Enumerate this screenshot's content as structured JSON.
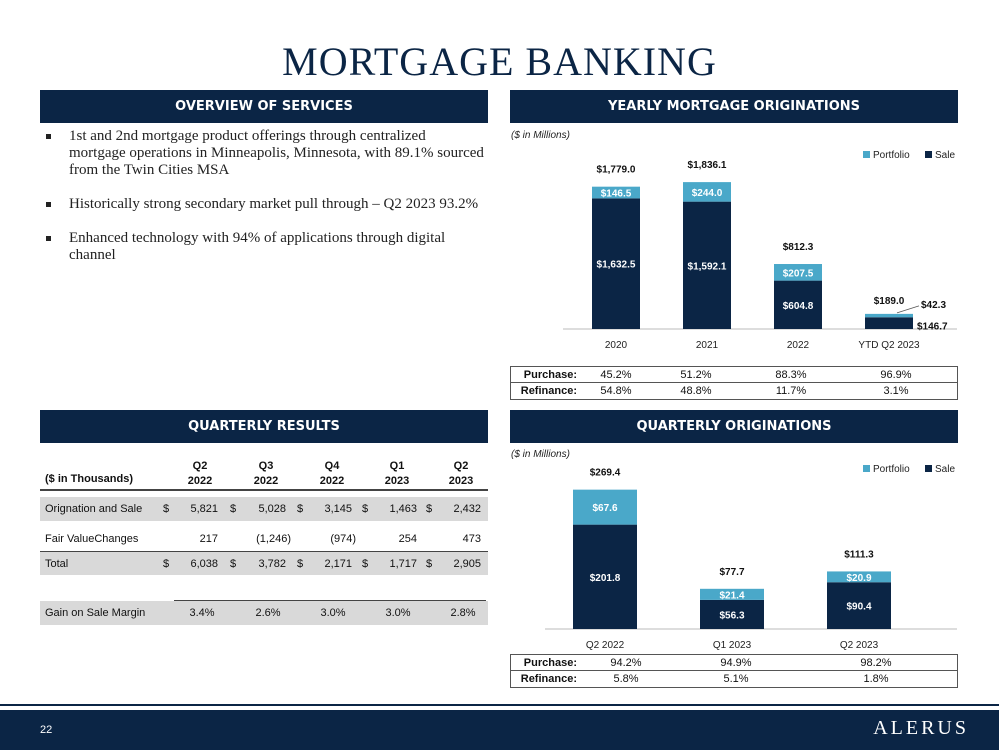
{
  "page": {
    "title": "MORTGAGE BANKING",
    "page_number": "22",
    "logo_text": "ALERUS"
  },
  "overview": {
    "header": "OVERVIEW OF SERVICES",
    "bullets": [
      "1st and 2nd mortgage product offerings through centralized mortgage operations in Minneapolis, Minnesota, with 89.1% sourced from the Twin Cities MSA",
      "Historically strong secondary market pull through – Q2 2023 93.2%",
      "Enhanced technology with 94% of applications through digital channel"
    ]
  },
  "yearly": {
    "header": "YEARLY MORTGAGE ORIGINATIONS",
    "purchase_label": "Purchase:",
    "refinance_label": "Refinance:",
    "purchase": [
      "45.2%",
      "51.2%",
      "88.3%",
      "96.9%"
    ],
    "refinance": [
      "54.8%",
      "48.8%",
      "11.7%",
      "3.1%"
    ]
  },
  "quarterly_orig": {
    "header": "QUARTERLY ORIGINATIONS",
    "purchase_label": "Purchase:",
    "refinance_label": "Refinance:",
    "purchase": [
      "94.2%",
      "94.9%",
      "98.2%"
    ],
    "refinance": [
      "5.8%",
      "5.1%",
      "1.8%"
    ]
  },
  "quarterly_results": {
    "header": "QUARTERLY RESULTS",
    "corner_label": "($ in Thousands)",
    "columns": [
      {
        "line1": "Q2",
        "line2": "2022"
      },
      {
        "line1": "Q3",
        "line2": "2022"
      },
      {
        "line1": "Q4",
        "line2": "2022"
      },
      {
        "line1": "Q1",
        "line2": "2023"
      },
      {
        "line1": "Q2",
        "line2": "2023"
      }
    ],
    "currency": "$",
    "rows": {
      "origination": {
        "label": "Orignation and Sale",
        "values": [
          "5,821",
          "5,028",
          "3,145",
          "1,463",
          "2,432"
        ]
      },
      "fair_value": {
        "label": "Fair ValueChanges",
        "values": [
          "217",
          "(1,246)",
          "(974)",
          "254",
          "473"
        ]
      },
      "total": {
        "label": "Total",
        "values": [
          "6,038",
          "3,782",
          "2,171",
          "1,717",
          "2,905"
        ]
      },
      "gain": {
        "label": "Gain on Sale Margin",
        "values": [
          "3.4%",
          "2.6%",
          "3.0%",
          "3.0%",
          "2.8%"
        ]
      }
    }
  },
  "colors": {
    "navy": "#0b2545",
    "portfolio": "#4aa8c9",
    "sale": "#0b2545",
    "shade": "#d9d9d9"
  },
  "chart_data": [
    {
      "type": "bar",
      "stacked": true,
      "unit_note": "($ in Millions)",
      "categories": [
        "2020",
        "2021",
        "2022",
        "YTD Q2 2023"
      ],
      "series": [
        {
          "name": "Sale",
          "values": [
            1632.5,
            1592.1,
            604.8,
            146.7
          ],
          "labels": [
            "$1,632.5",
            "$1,592.1",
            "$604.8",
            "$146.7"
          ]
        },
        {
          "name": "Portfolio",
          "values": [
            146.5,
            244.0,
            207.5,
            42.3
          ],
          "labels": [
            "$146.5",
            "$244.0",
            "$207.5",
            "$42.3"
          ]
        }
      ],
      "totals": [
        "$1,779.0",
        "$1,836.1",
        "$812.3",
        "$189.0"
      ],
      "legend_labels": [
        "Portfolio",
        "Sale"
      ],
      "legend": "top-right",
      "ylim": [
        0,
        1900
      ]
    },
    {
      "type": "bar",
      "stacked": true,
      "unit_note": "($ in Millions)",
      "categories": [
        "Q2 2022",
        "Q1 2023",
        "Q2 2023"
      ],
      "series": [
        {
          "name": "Sale",
          "values": [
            201.8,
            56.3,
            90.4
          ],
          "labels": [
            "$201.8",
            "$56.3",
            "$90.4"
          ]
        },
        {
          "name": "Portfolio",
          "values": [
            67.6,
            21.4,
            20.9
          ],
          "labels": [
            "$67.6",
            "$21.4",
            "$20.9"
          ]
        }
      ],
      "totals": [
        "$269.4",
        "$77.7",
        "$111.3"
      ],
      "legend_labels": [
        "Portfolio",
        "Sale"
      ],
      "legend": "top-right",
      "ylim": [
        0,
        290
      ]
    }
  ]
}
